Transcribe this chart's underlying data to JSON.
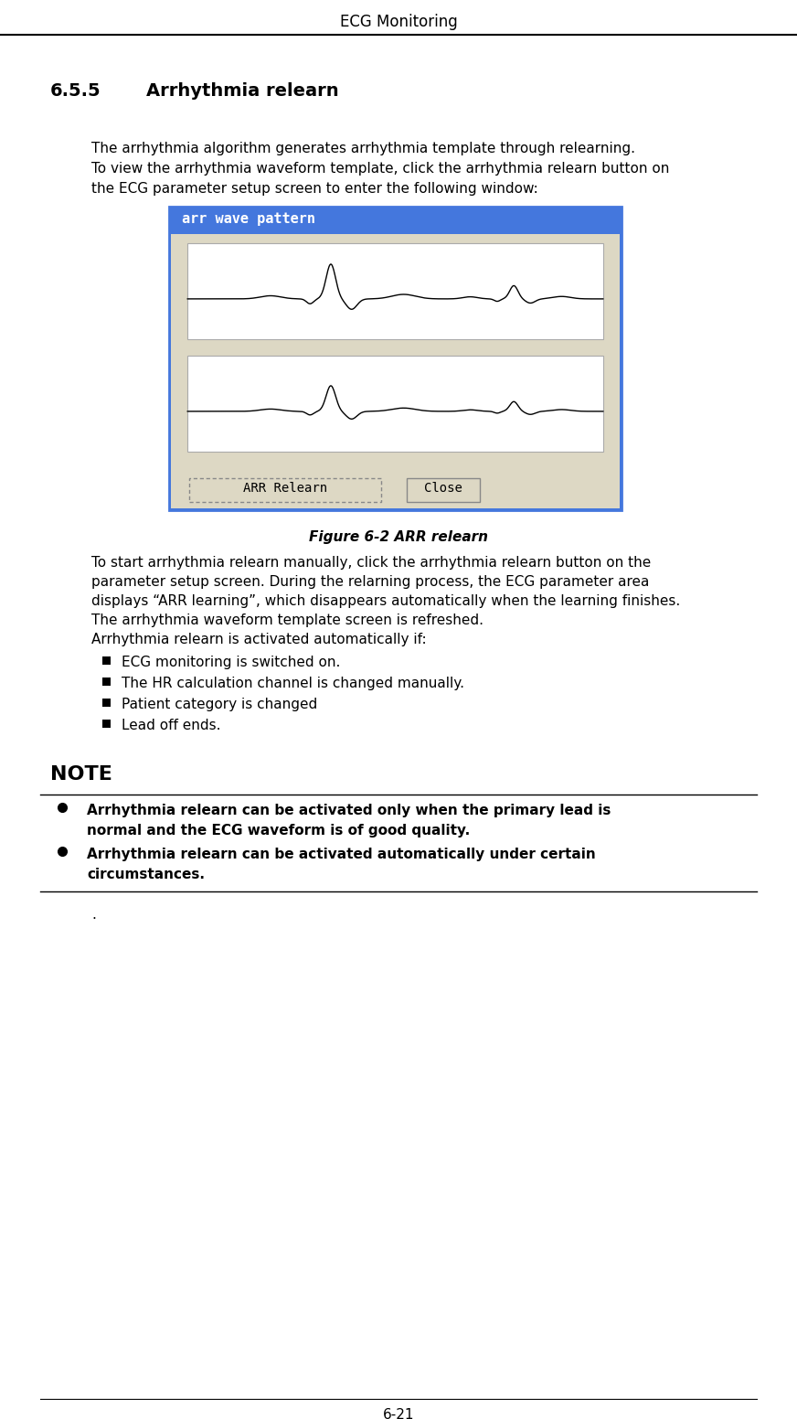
{
  "title": "ECG Monitoring",
  "page_number": "6-21",
  "section_num": "6.5.5",
  "section_title": "Arrhythmia relearn",
  "intro_text": [
    "The arrhythmia algorithm generates arrhythmia template through relearning.",
    "To view the arrhythmia waveform template, click the arrhythmia relearn button on",
    "the ECG parameter setup screen to enter the following window:"
  ],
  "figure_caption": "Figure 6-2 ARR relearn",
  "window_title": "arr wave pattern",
  "button1": "ARR Relearn",
  "button2": "Close",
  "body_text": [
    "To start arrhythmia relearn manually, click the arrhythmia relearn button on the",
    "parameter setup screen. During the relarning process, the ECG parameter area",
    "displays “ARR learning”, which disappears automatically when the learning finishes.",
    "The arrhythmia waveform template screen is refreshed.",
    "Arrhythmia relearn is activated automatically if:"
  ],
  "bullet_items": [
    "ECG monitoring is switched on.",
    "The HR calculation channel is changed manually.",
    "Patient category is changed",
    "Lead off ends."
  ],
  "note_title": "NOTE",
  "note_bullets": [
    "Arrhythmia relearn can be activated only when the primary lead is\nnormal and the ECG waveform is of good quality.",
    "Arrhythmia relearn can be activated automatically under certain\ncircumstances."
  ],
  "final_dot": ".",
  "bg_color": "#ffffff",
  "window_header_color": "#4477dd",
  "window_header_text_color": "#ffffff",
  "window_body_color": "#ddd8c4",
  "window_border_color": "#4477dd",
  "ecg_color": "#000000",
  "header_line_color": "#000000",
  "note_line_color": "#000000"
}
